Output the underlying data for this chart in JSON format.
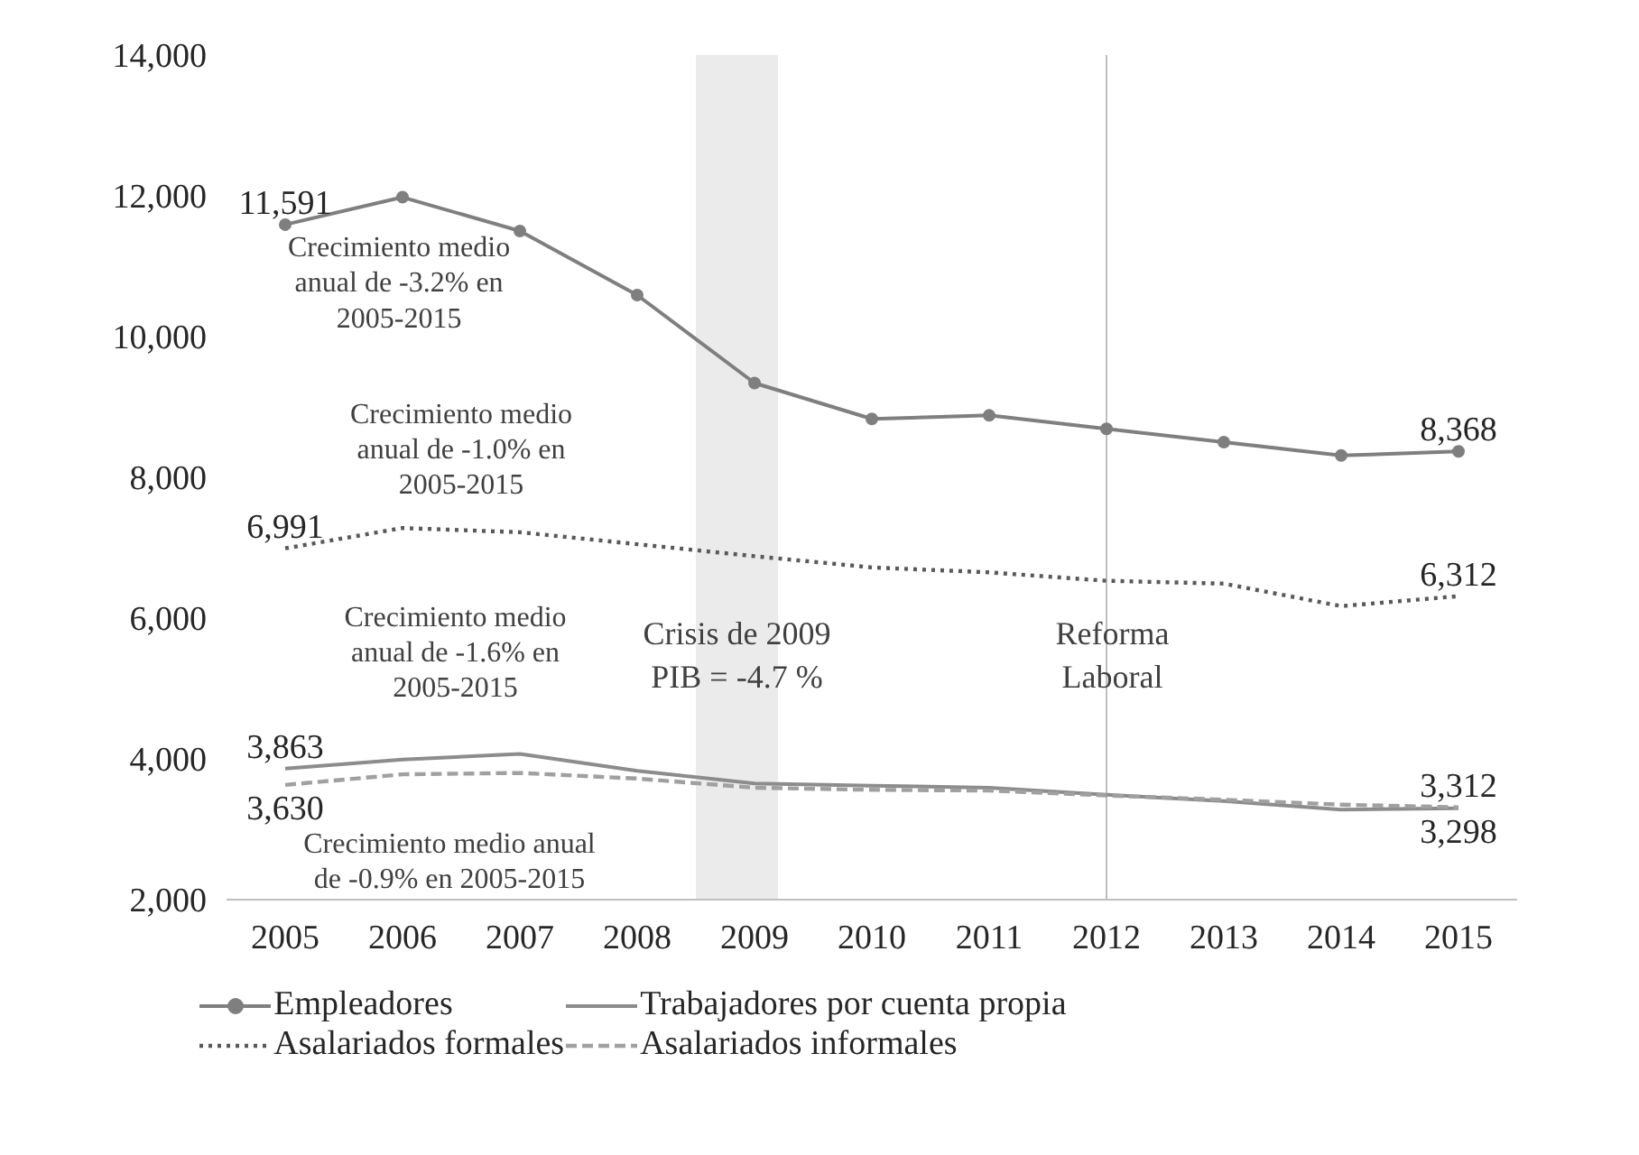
{
  "chart_data": {
    "type": "line",
    "x": [
      2005,
      2006,
      2007,
      2008,
      2009,
      2010,
      2011,
      2012,
      2013,
      2014,
      2015
    ],
    "series": [
      {
        "name": "Empleadores",
        "color": "#7f7f7f",
        "line_style": "solid",
        "marker": "circle",
        "values": [
          11591,
          11980,
          11500,
          10590,
          9340,
          8830,
          8880,
          8690,
          8500,
          8310,
          8368
        ],
        "value_labels": [
          "11,591",
          null,
          null,
          null,
          null,
          null,
          null,
          null,
          null,
          null,
          "8,368"
        ]
      },
      {
        "name": "Trabajadores por cuenta propia",
        "color": "#8c8c8c",
        "line_style": "solid",
        "marker": "none",
        "values": [
          3863,
          3990,
          4070,
          3830,
          3650,
          3620,
          3590,
          3490,
          3400,
          3280,
          3298
        ],
        "value_labels": [
          "3,863",
          null,
          null,
          null,
          null,
          null,
          null,
          null,
          null,
          null,
          "3,298"
        ]
      },
      {
        "name": "Asalariados formales",
        "color": "#595959",
        "line_style": "dotted",
        "marker": "none",
        "values": [
          6991,
          7280,
          7220,
          7050,
          6880,
          6720,
          6650,
          6530,
          6490,
          6170,
          6312
        ],
        "value_labels": [
          "6,991",
          null,
          null,
          null,
          null,
          null,
          null,
          null,
          null,
          null,
          "6,312"
        ]
      },
      {
        "name": "Asalariados informales",
        "color": "#a0a0a0",
        "line_style": "dashed",
        "marker": "none",
        "values": [
          3630,
          3780,
          3800,
          3720,
          3590,
          3560,
          3550,
          3480,
          3420,
          3350,
          3312
        ],
        "value_labels": [
          "3,630",
          null,
          null,
          null,
          null,
          null,
          null,
          null,
          null,
          null,
          "3,312"
        ]
      }
    ],
    "xlim": [
      2004.5,
      2015.5
    ],
    "xticks": [
      2005,
      2006,
      2007,
      2008,
      2009,
      2010,
      2011,
      2012,
      2013,
      2014,
      2015
    ],
    "ylim": [
      2000,
      14000
    ],
    "yticks": [
      {
        "value": 2000,
        "label": "2,000"
      },
      {
        "value": 4000,
        "label": "4,000"
      },
      {
        "value": 6000,
        "label": "6,000"
      },
      {
        "value": 8000,
        "label": "8,000"
      },
      {
        "value": 10000,
        "label": "10,000"
      },
      {
        "value": 12000,
        "label": "12,000"
      },
      {
        "value": 14000,
        "label": "14,000"
      }
    ],
    "bands": [
      {
        "axis": "x",
        "from": 2008.5,
        "to": 2009.2,
        "label": "Crisis de 2009\nPIB = -4.7 %",
        "color": "#ebebeb"
      }
    ],
    "ref_lines": [
      {
        "axis": "x",
        "value": 2012,
        "label": "Reforma\nLaboral",
        "color": "#bfbfbf"
      }
    ],
    "annotations": [
      "Crecimiento medio\nanual de -3.2% en\n2005-2015",
      "Crecimiento medio\nanual de -1.0% en\n2005-2015",
      "Crecimiento medio\nanual de -1.6% en\n2005-2015",
      "Crecimiento medio anual\nde -0.9% en 2005-2015"
    ],
    "grid": false,
    "legend": "bottom"
  }
}
